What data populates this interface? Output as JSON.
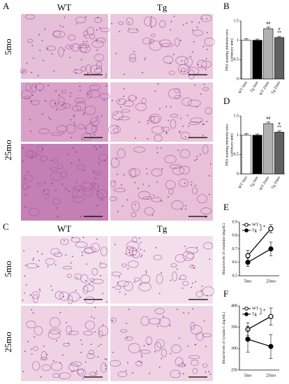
{
  "figure": {
    "A": {
      "label": "A",
      "columns": [
        "WT",
        "Tg"
      ],
      "rows": [
        "5mo",
        "25mo"
      ]
    },
    "C": {
      "label": "C",
      "columns": [
        "WT",
        "Tg"
      ],
      "rows": [
        "5mo",
        "25mo"
      ]
    }
  },
  "chart_data": [
    {
      "type": "bar",
      "panel": "B",
      "ylabel": [
        "PAS staining intensity/area",
        "(arbitrary unit)"
      ],
      "categories": [
        "WT 5mo",
        "Tg 5mo",
        "WT 25mo",
        "Tg 25mo"
      ],
      "values": [
        1.0,
        1.0,
        1.3,
        1.07
      ],
      "errors": [
        0.04,
        0.03,
        0.04,
        0.03
      ],
      "colors": [
        "#ffffff",
        "#000000",
        "#b0b0b0",
        "#606060"
      ],
      "bar_annotations": [
        [],
        [],
        [
          "##"
        ],
        [
          "#",
          "**"
        ]
      ],
      "ylim": [
        0,
        1.5
      ],
      "yticks": [
        0,
        0.5,
        1,
        1.5
      ]
    },
    {
      "type": "bar",
      "panel": "D",
      "ylabel": [
        "PAS staining intensity/area",
        "(arbitrary unit)"
      ],
      "categories": [
        "WT 5mo",
        "Tg 5mo",
        "WT 25mo",
        "Tg 25mo"
      ],
      "values": [
        1.0,
        1.0,
        1.3,
        1.08
      ],
      "errors": [
        0.04,
        0.03,
        0.04,
        0.03
      ],
      "colors": [
        "#ffffff",
        "#000000",
        "#b0b0b0",
        "#606060"
      ],
      "bar_annotations": [
        [],
        [],
        [
          "##"
        ],
        [
          "#",
          "**"
        ]
      ],
      "ylim": [
        0,
        1.5
      ],
      "yticks": [
        0,
        0.5,
        1,
        1.5
      ]
    },
    {
      "type": "line",
      "panel": "E",
      "ylabel": "Blood levels of creatinine (mg/dL)",
      "categories": [
        "5mo",
        "25mo"
      ],
      "series": [
        {
          "name": "WT",
          "color": "#000000",
          "marker_fill": "#ffffff",
          "values": [
            0.65,
            0.85
          ],
          "errors": [
            0.04,
            0.03
          ]
        },
        {
          "name": "Tg",
          "color": "#000000",
          "marker_fill": "#000000",
          "values": [
            0.6,
            0.7
          ],
          "errors": [
            0.03,
            0.05
          ]
        }
      ],
      "annotation": "*",
      "ylim": [
        0.5,
        0.9
      ],
      "yticks": [
        0.5,
        0.6,
        0.7,
        0.8,
        0.9
      ]
    },
    {
      "type": "line",
      "panel": "F",
      "ylabel": "Blood levels of cystatin C (ng/mL)",
      "categories": [
        "5mo",
        "25mo"
      ],
      "series": [
        {
          "name": "WT",
          "color": "#000000",
          "marker_fill": "#ffffff",
          "values": [
            345,
            375
          ],
          "errors": [
            15,
            20
          ]
        },
        {
          "name": "Tg",
          "color": "#000000",
          "marker_fill": "#000000",
          "values": [
            322,
            305
          ],
          "errors": [
            30,
            28
          ]
        }
      ],
      "annotation": "*",
      "ylim": [
        250,
        400
      ],
      "yticks": [
        250,
        300,
        350,
        400
      ]
    }
  ]
}
